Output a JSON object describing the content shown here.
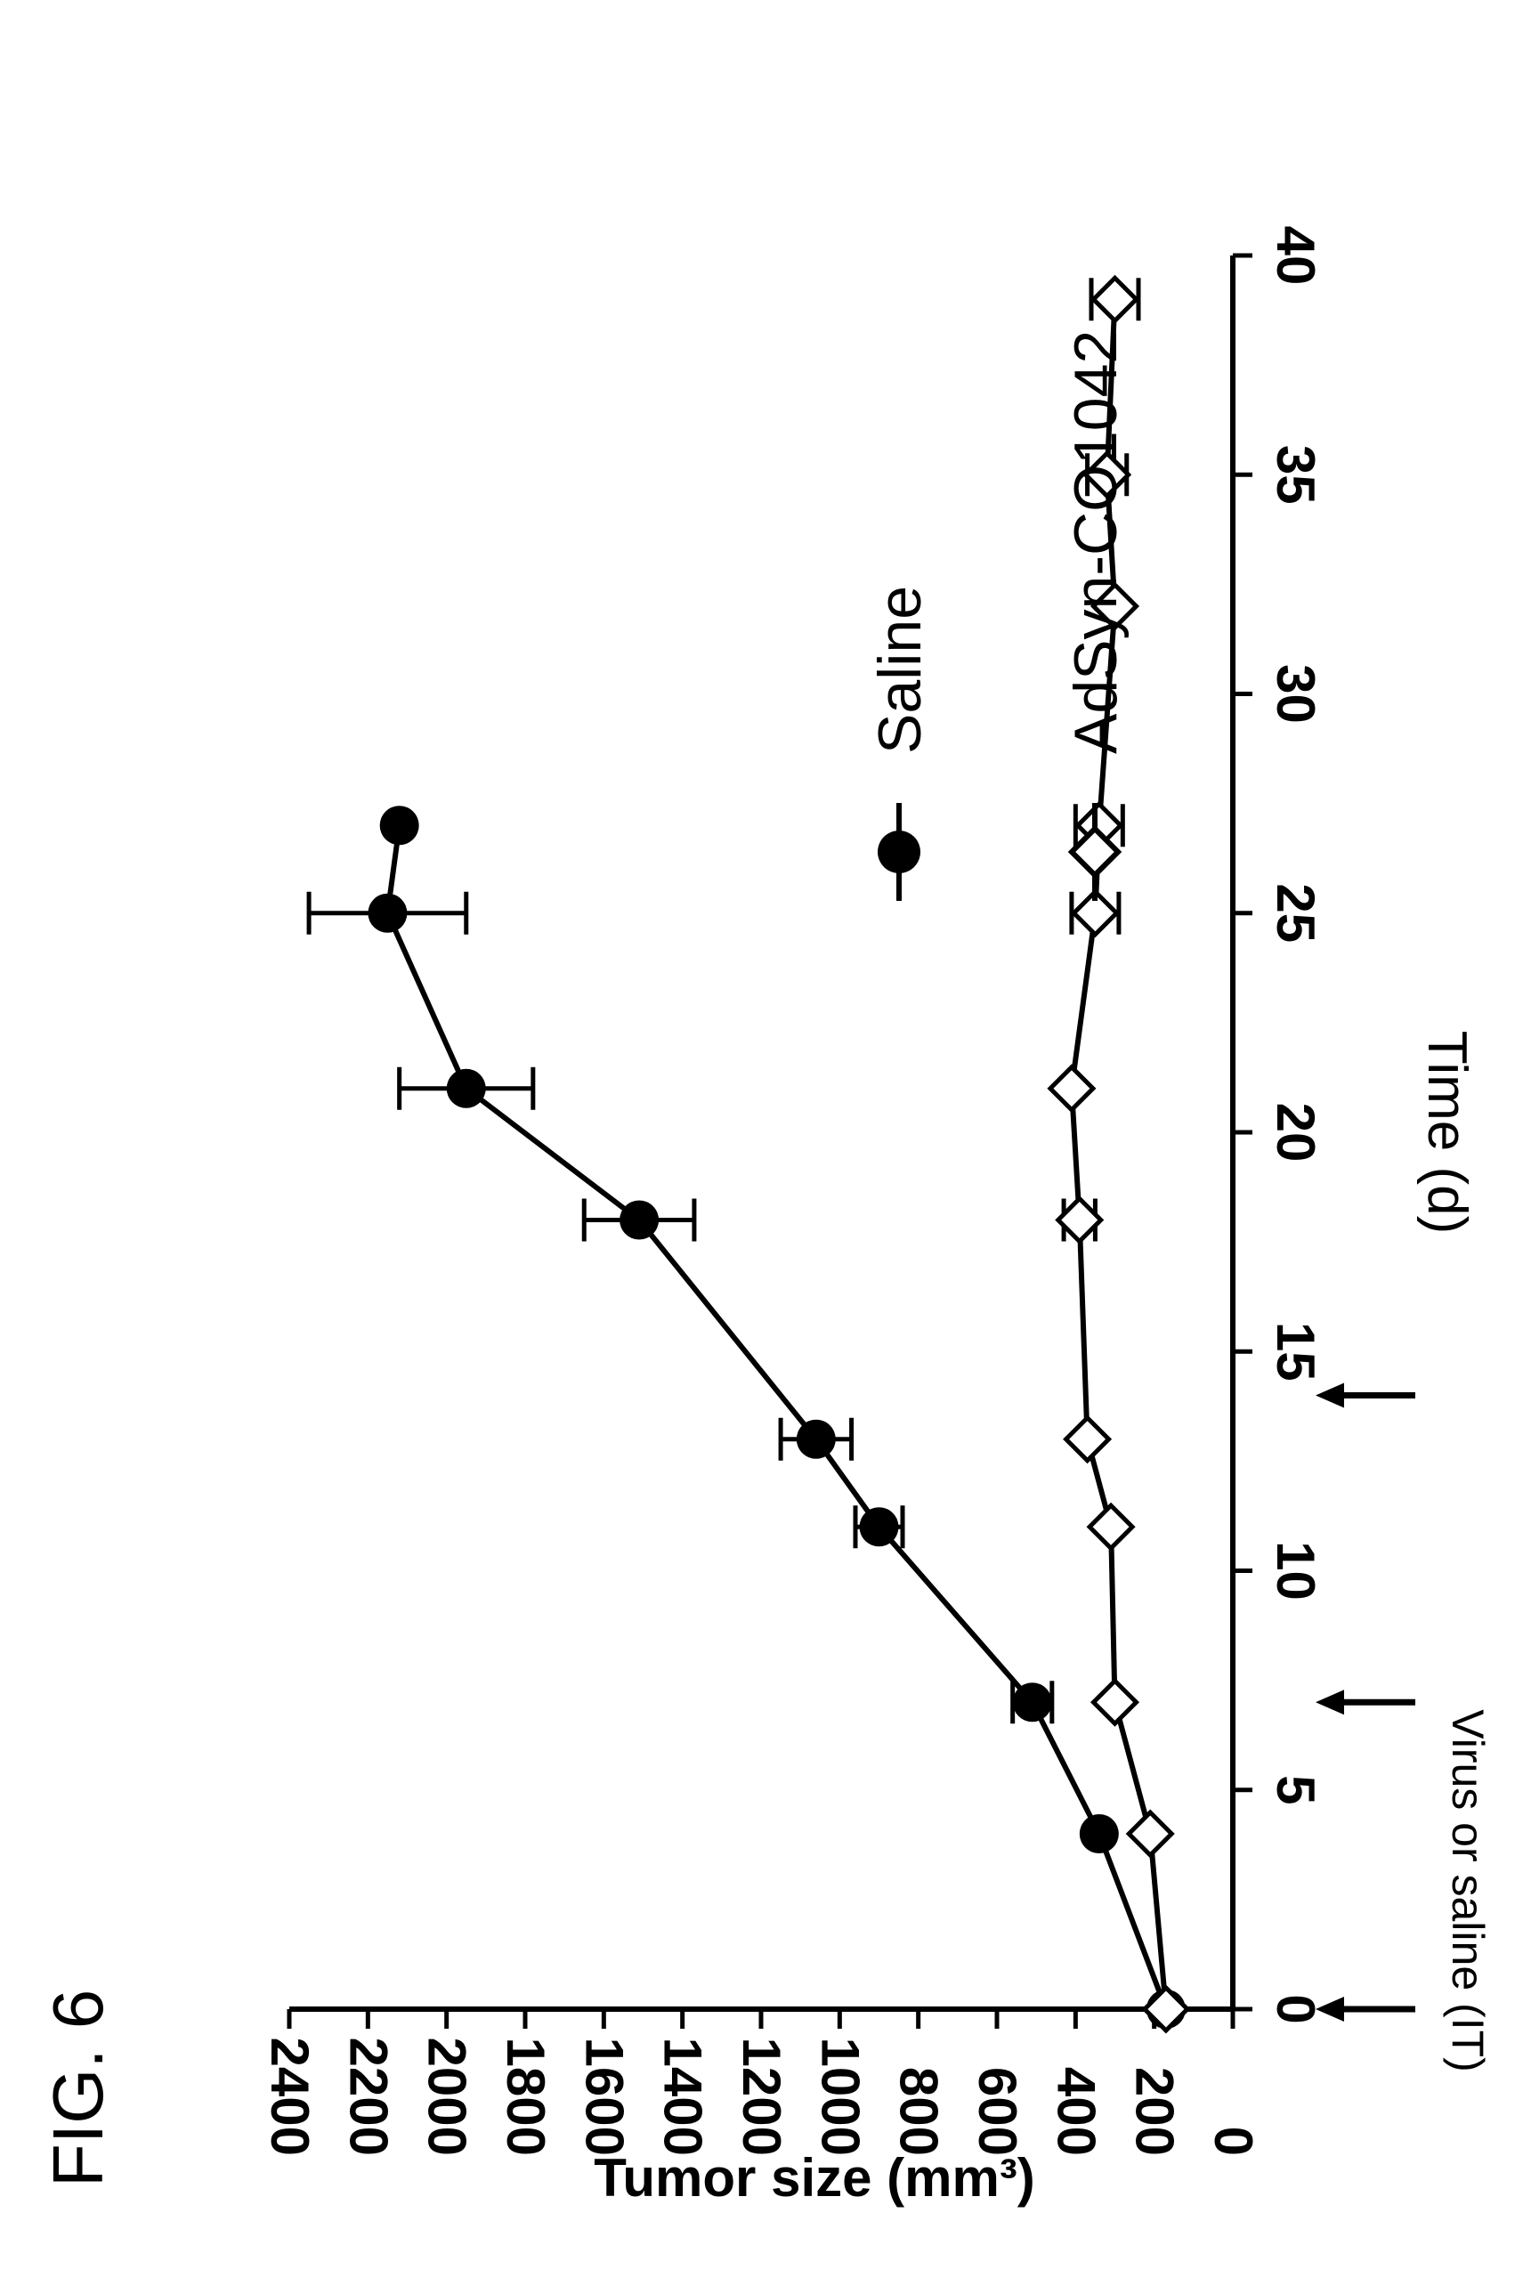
{
  "figure_label": "FIG. 6",
  "annotation": {
    "text": "Virus or saline (IT)",
    "arrow_days": [
      0,
      7,
      14
    ]
  },
  "chart_data": {
    "type": "line",
    "xlabel": "Time (d)",
    "ylabel": "Tumor size (mm³)",
    "xlim": [
      0,
      40
    ],
    "ylim": [
      0,
      2400
    ],
    "xticks": [
      0,
      5,
      10,
      15,
      20,
      25,
      30,
      35,
      40
    ],
    "yticks": [
      0,
      200,
      400,
      600,
      800,
      1000,
      1200,
      1400,
      1600,
      1800,
      2000,
      2200,
      2400
    ],
    "legend_position": "right",
    "series": [
      {
        "name": "Saline",
        "marker": "filled-circle",
        "color": "#000000",
        "x": [
          0,
          4,
          7,
          11,
          13,
          18,
          21,
          25,
          27
        ],
        "y": [
          170,
          340,
          510,
          900,
          1060,
          1510,
          1950,
          2150,
          2120
        ],
        "err": [
          0,
          0,
          50,
          60,
          90,
          140,
          170,
          200,
          0
        ]
      },
      {
        "name": "AdSyn-CO1042",
        "marker": "open-diamond",
        "color": "#000000",
        "x": [
          0,
          4,
          7,
          11,
          13,
          18,
          21,
          25,
          27,
          32,
          35,
          39
        ],
        "y": [
          170,
          210,
          300,
          310,
          370,
          390,
          410,
          350,
          340,
          300,
          320,
          300
        ],
        "err": [
          0,
          0,
          0,
          0,
          0,
          40,
          0,
          60,
          60,
          0,
          50,
          60
        ]
      }
    ]
  }
}
